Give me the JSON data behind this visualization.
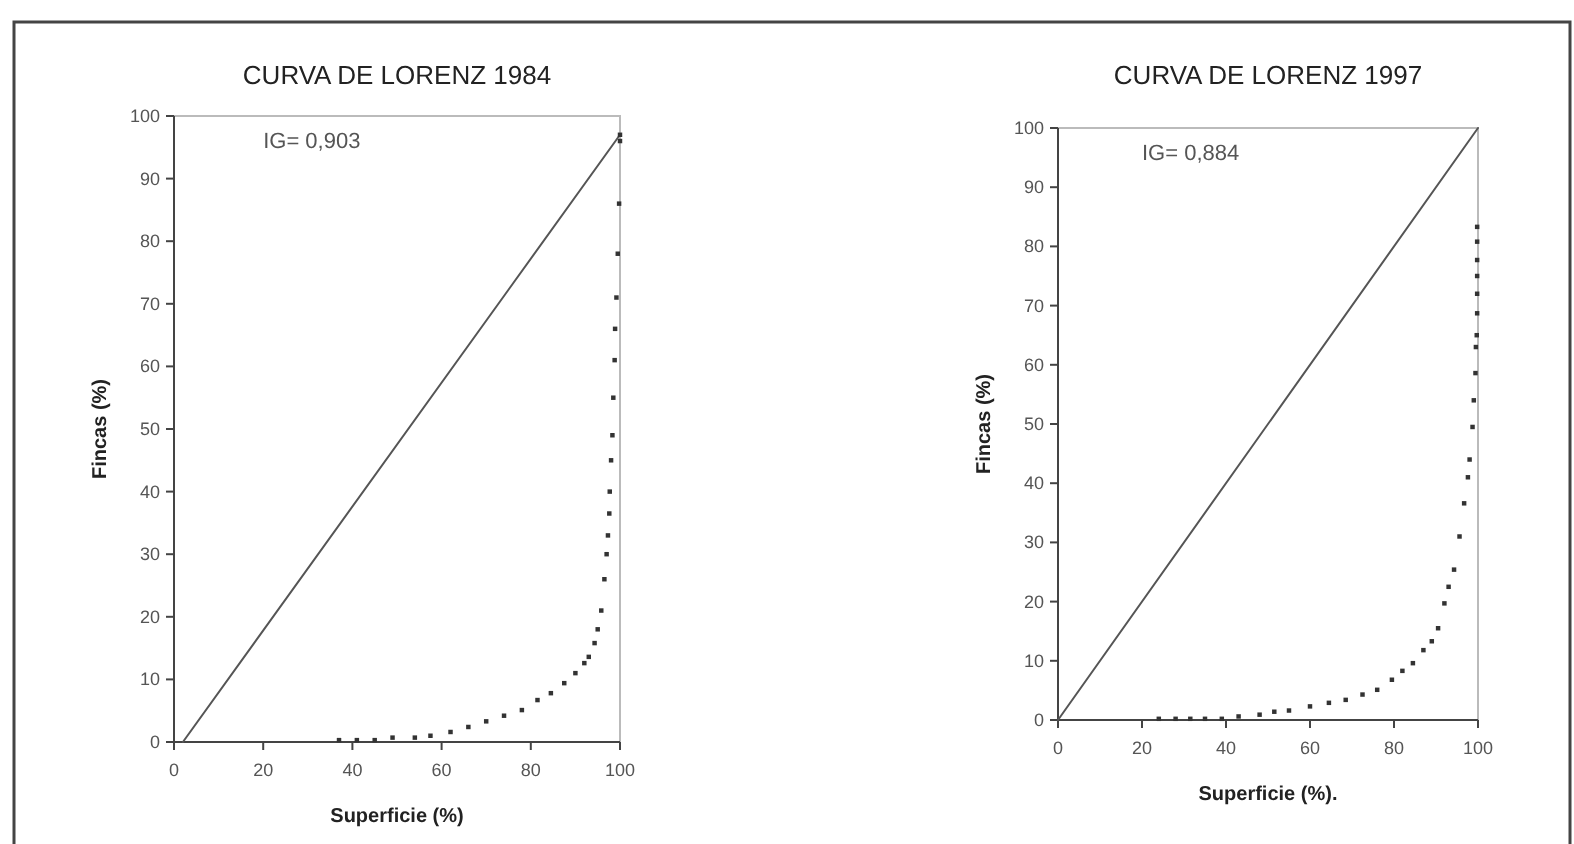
{
  "chart_data": [
    {
      "type": "scatter",
      "title": "CURVA DE LORENZ 1984",
      "xlabel": "Superficie (%)",
      "ylabel": "Fincas (%)",
      "annotations": [
        "IG= 0,903"
      ],
      "xlim": [
        0,
        100
      ],
      "ylim": [
        0,
        100
      ],
      "xticks": [
        0,
        20,
        40,
        60,
        80,
        100
      ],
      "yticks": [
        0,
        10,
        20,
        30,
        40,
        50,
        60,
        70,
        80,
        90,
        100
      ],
      "grid": false,
      "series": [
        {
          "type": "line",
          "marker": "none",
          "color": "#555555",
          "x": [
            2,
            100
          ],
          "values": [
            0,
            97
          ]
        },
        {
          "marker": "square",
          "color": "#333333",
          "x": [
            37,
            41,
            45,
            49,
            54,
            57.5,
            62,
            66,
            70,
            74,
            78,
            81.5,
            84.5,
            87.5,
            90,
            92,
            93,
            94.3,
            95,
            95.8,
            96.5,
            97,
            97.3,
            97.6,
            97.7,
            98,
            98.3,
            98.5,
            98.8,
            98.9,
            99.2,
            99.5,
            99.8,
            100,
            100
          ],
          "values": [
            0.3,
            0.3,
            0.3,
            0.7,
            0.7,
            1,
            1.6,
            2.4,
            3.3,
            4.2,
            5.1,
            6.7,
            7.8,
            9.4,
            11,
            12.6,
            13.6,
            15.8,
            18,
            21,
            26,
            30,
            33,
            36.5,
            40,
            45,
            49,
            55,
            61,
            66,
            71,
            78,
            86,
            96,
            97
          ]
        }
      ]
    },
    {
      "type": "scatter",
      "title": "CURVA DE LORENZ 1997",
      "xlabel": "Superficie (%).",
      "ylabel": "Fincas (%)",
      "annotations": [
        "IG= 0,884"
      ],
      "xlim": [
        0,
        100
      ],
      "ylim": [
        0,
        100
      ],
      "xticks": [
        0,
        20,
        40,
        60,
        80,
        100
      ],
      "yticks": [
        0,
        10,
        20,
        30,
        40,
        50,
        60,
        70,
        80,
        90,
        100
      ],
      "grid": false,
      "series": [
        {
          "type": "line",
          "marker": "none",
          "color": "#555555",
          "x": [
            0,
            100
          ],
          "values": [
            0,
            100
          ]
        },
        {
          "marker": "square",
          "color": "#333333",
          "x": [
            24,
            28,
            31.5,
            35,
            39,
            43,
            48,
            51.5,
            55,
            60,
            64.5,
            68.5,
            72.5,
            76,
            79.5,
            82,
            84.5,
            87,
            89,
            90.5,
            92,
            93,
            94.3,
            95.6,
            96.7,
            97.6,
            98,
            98.7,
            99,
            99.4,
            99.5,
            99.7,
            99.8,
            99.8,
            99.8,
            99.8,
            99.8,
            99.8
          ],
          "values": [
            0.2,
            0.2,
            0.2,
            0.2,
            0.2,
            0.6,
            0.9,
            1.4,
            1.6,
            2.3,
            2.9,
            3.4,
            4.3,
            5.1,
            6.8,
            8.3,
            9.6,
            11.8,
            13.3,
            15.5,
            19.7,
            22.5,
            25.4,
            31,
            36.6,
            41,
            44,
            49.5,
            54,
            58.6,
            63,
            65,
            68.7,
            72,
            75,
            77.7,
            80.8,
            83.3
          ]
        }
      ]
    }
  ]
}
